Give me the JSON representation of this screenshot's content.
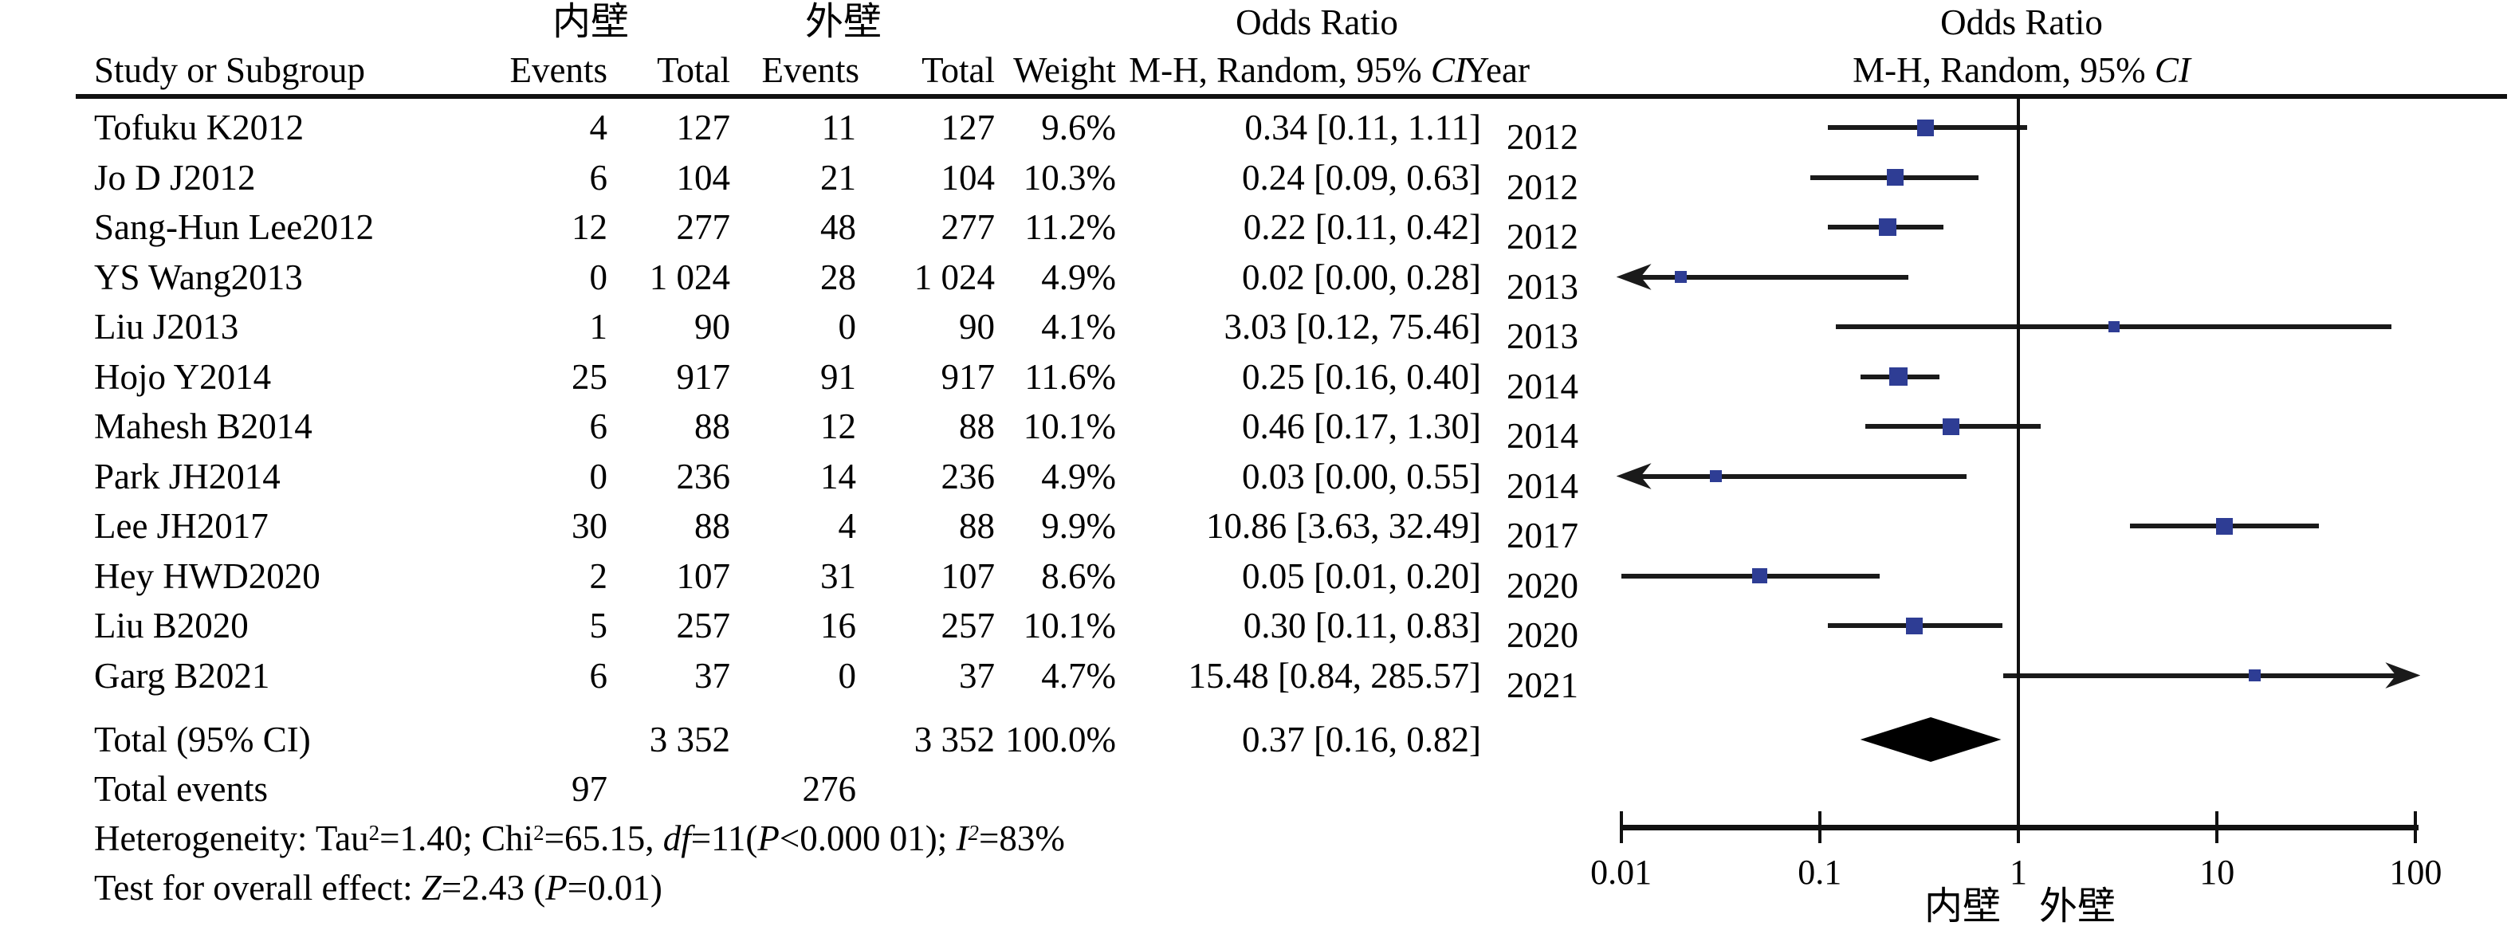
{
  "header": {
    "group_inner": "内壁",
    "group_outer": "外壁",
    "or_title_left": "Odds Ratio",
    "or_title_right": "Odds Ratio",
    "study": "Study or Subgroup",
    "events1": "Events",
    "total1": "Total",
    "events2": "Events",
    "total2": "Total",
    "weight": "Weight",
    "mh_prefix": "M-H, Random, 95% ",
    "mh_ci": "CI",
    "year": "Year",
    "mh_right_prefix": "M-H, Random, 95% ",
    "mh_right_ci": "CI"
  },
  "chart_data": {
    "type": "scatter",
    "subtype": "forest-plot",
    "x_scale": "log",
    "xlim": [
      0.01,
      100
    ],
    "effect_measure": "Odds Ratio, M-H, Random, 95% CI",
    "studies": [
      {
        "name": "Tofuku K2012",
        "e1": "4",
        "t1": "127",
        "e2": "11",
        "t2": "127",
        "weight": "9.6%",
        "weight_value": 9.6,
        "or_text": "0.34 [0.11, 1.11]",
        "year": "2012",
        "or": 0.34,
        "lo": 0.11,
        "hi": 1.11,
        "arrow_left": false,
        "arrow_right": false
      },
      {
        "name": "Jo D J2012",
        "e1": "6",
        "t1": "104",
        "e2": "21",
        "t2": "104",
        "weight": "10.3%",
        "weight_value": 10.3,
        "or_text": "0.24 [0.09, 0.63]",
        "year": "2012",
        "or": 0.24,
        "lo": 0.09,
        "hi": 0.63,
        "arrow_left": false,
        "arrow_right": false
      },
      {
        "name": "Sang-Hun Lee2012",
        "e1": "12",
        "t1": "277",
        "e2": "48",
        "t2": "277",
        "weight": "11.2%",
        "weight_value": 11.2,
        "or_text": "0.22 [0.11, 0.42]",
        "year": "2012",
        "or": 0.22,
        "lo": 0.11,
        "hi": 0.42,
        "arrow_left": false,
        "arrow_right": false
      },
      {
        "name": "YS Wang2013",
        "e1": "0",
        "t1": "1 024",
        "e2": "28",
        "t2": "1 024",
        "weight": "4.9%",
        "weight_value": 4.9,
        "or_text": "0.02 [0.00, 0.28]",
        "year": "2013",
        "or": 0.02,
        "lo": 0,
        "hi": 0.28,
        "arrow_left": true,
        "arrow_right": false
      },
      {
        "name": "Liu J2013",
        "e1": "1",
        "t1": "90",
        "e2": "0",
        "t2": "90",
        "weight": "4.1%",
        "weight_value": 4.1,
        "or_text": "3.03 [0.12, 75.46]",
        "year": "2013",
        "or": 3.03,
        "lo": 0.12,
        "hi": 75.46,
        "arrow_left": false,
        "arrow_right": false
      },
      {
        "name": "Hojo Y2014",
        "e1": "25",
        "t1": "917",
        "e2": "91",
        "t2": "917",
        "weight": "11.6%",
        "weight_value": 11.6,
        "or_text": "0.25 [0.16, 0.40]",
        "year": "2014",
        "or": 0.25,
        "lo": 0.16,
        "hi": 0.4,
        "arrow_left": false,
        "arrow_right": false
      },
      {
        "name": "Mahesh B2014",
        "e1": "6",
        "t1": "88",
        "e2": "12",
        "t2": "88",
        "weight": "10.1%",
        "weight_value": 10.1,
        "or_text": "0.46 [0.17, 1.30]",
        "year": "2014",
        "or": 0.46,
        "lo": 0.17,
        "hi": 1.3,
        "arrow_left": false,
        "arrow_right": false
      },
      {
        "name": "Park JH2014",
        "e1": "0",
        "t1": "236",
        "e2": "14",
        "t2": "236",
        "weight": "4.9%",
        "weight_value": 4.9,
        "or_text": "0.03 [0.00, 0.55]",
        "year": "2014",
        "or": 0.03,
        "lo": 0,
        "hi": 0.55,
        "arrow_left": true,
        "arrow_right": false
      },
      {
        "name": "Lee JH2017",
        "e1": "30",
        "t1": "88",
        "e2": "4",
        "t2": "88",
        "weight": "9.9%",
        "weight_value": 9.9,
        "or_text": "10.86 [3.63, 32.49]",
        "year": "2017",
        "or": 10.86,
        "lo": 3.63,
        "hi": 32.49,
        "arrow_left": false,
        "arrow_right": false
      },
      {
        "name": "Hey HWD2020",
        "e1": "2",
        "t1": "107",
        "e2": "31",
        "t2": "107",
        "weight": "8.6%",
        "weight_value": 8.6,
        "or_text": "0.05 [0.01, 0.20]",
        "year": "2020",
        "or": 0.05,
        "lo": 0.01,
        "hi": 0.2,
        "arrow_left": false,
        "arrow_right": false
      },
      {
        "name": "Liu B2020",
        "e1": "5",
        "t1": "257",
        "e2": "16",
        "t2": "257",
        "weight": "10.1%",
        "weight_value": 10.1,
        "or_text": "0.30 [0.11, 0.83]",
        "year": "2020",
        "or": 0.3,
        "lo": 0.11,
        "hi": 0.83,
        "arrow_left": false,
        "arrow_right": false
      },
      {
        "name": "Garg B2021",
        "e1": "6",
        "t1": "37",
        "e2": "0",
        "t2": "37",
        "weight": "4.7%",
        "weight_value": 4.7,
        "or_text": "15.48 [0.84, 285.57]",
        "year": "2021",
        "or": 15.48,
        "lo": 0.84,
        "hi": 285.57,
        "arrow_left": false,
        "arrow_right": true
      }
    ],
    "total": {
      "label": "Total (95% CI)",
      "t1": "3 352",
      "t2": "3 352",
      "weight": "100.0%",
      "or_text": "0.37 [0.16, 0.82]",
      "or": 0.37,
      "lo": 0.16,
      "hi": 0.82
    },
    "total_events": {
      "label": "Total events",
      "e1": "97",
      "e2": "276"
    },
    "axis": {
      "ticks": [
        {
          "label": "0.01",
          "value": 0.01
        },
        {
          "label": "0.1",
          "value": 0.1
        },
        {
          "label": "1",
          "value": 1
        },
        {
          "label": "10",
          "value": 10
        },
        {
          "label": "100",
          "value": 100
        }
      ],
      "favours_left": "内壁",
      "favours_right": "外壁"
    }
  },
  "footer": {
    "het": {
      "p1": "Heterogeneity: Tau",
      "s1": "2",
      "p2": "=1.40; Chi",
      "s2": "2",
      "p3": "=65.15, ",
      "i1": "df",
      "p4": "=11(",
      "i2": "P",
      "p5": "<0.000 01); ",
      "i3": "I",
      "s3": "2",
      "p6": "=83%"
    },
    "test": {
      "p1": "Test for overall effect: ",
      "i1": "Z",
      "p2": "=2.43 (",
      "i2": "P",
      "p3": "=0.01)"
    }
  },
  "colors": {
    "marker": "#2e3d94",
    "line": "#1a1a1a",
    "diamond": "#000000"
  }
}
